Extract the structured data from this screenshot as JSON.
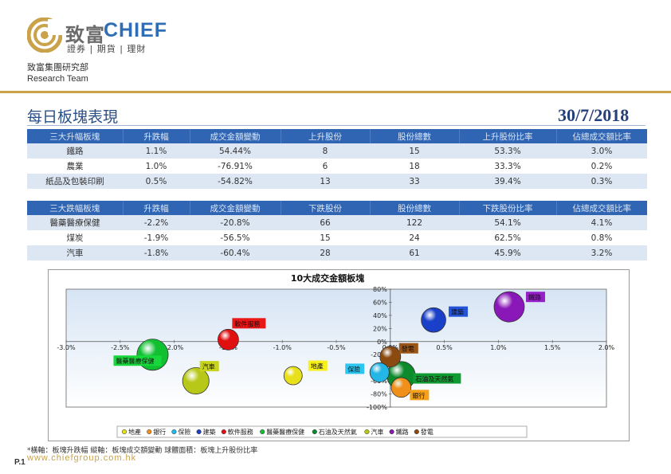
{
  "brand": {
    "name_cn": "致富",
    "name_en": "CHIEF",
    "tagline": "證券 | 期貨 | 理財",
    "colors": {
      "gold": "#c9a24a",
      "blue": "#2f6db5"
    }
  },
  "team": {
    "cn": "致富集團研究部",
    "en": "Research Team"
  },
  "page": {
    "title": "每日板塊表現",
    "date": "30/7/2018",
    "number": "P.1",
    "website": "www.chiefgroup.com.hk"
  },
  "top_table": {
    "headers": [
      "三大升幅板塊",
      "升跌幅",
      "成交金額變動",
      "上升股份",
      "股份總數",
      "上升股份比率",
      "佔總成交額比率"
    ],
    "rows": [
      [
        "鐵路",
        "1.1%",
        "54.44%",
        "8",
        "15",
        "53.3%",
        "3.0%"
      ],
      [
        "農業",
        "1.0%",
        "-76.91%",
        "6",
        "18",
        "33.3%",
        "0.2%"
      ],
      [
        "紙品及包裝印刷",
        "0.5%",
        "-54.82%",
        "13",
        "33",
        "39.4%",
        "0.3%"
      ]
    ]
  },
  "bottom_table": {
    "headers": [
      "三大跌幅板塊",
      "升跌幅",
      "成交金額變動",
      "下跌股份",
      "股份總數",
      "下跌股份比率",
      "佔總成交額比率"
    ],
    "rows": [
      [
        "醫藥醫療保健",
        "-2.2%",
        "-20.8%",
        "66",
        "122",
        "54.1%",
        "4.1%"
      ],
      [
        "煤炭",
        "-1.9%",
        "-56.5%",
        "15",
        "24",
        "62.5%",
        "0.8%"
      ],
      [
        "汽車",
        "-1.8%",
        "-60.4%",
        "28",
        "61",
        "45.9%",
        "3.2%"
      ]
    ]
  },
  "chart_data": {
    "type": "scatter",
    "title": "10大成交金額板塊",
    "x_ticks": [
      "-3.0%",
      "-2.5%",
      "-2.0%",
      "-1.5%",
      "-1.0%",
      "-0.5%",
      "0.0%",
      "0.5%",
      "1.0%",
      "1.5%",
      "2.0%"
    ],
    "y_ticks": [
      "80%",
      "60%",
      "40%",
      "20%",
      "0%",
      "-20%",
      "-40%",
      "-60%",
      "-80%",
      "-100%"
    ],
    "xlim": [
      -3.0,
      2.0
    ],
    "ylim": [
      -100,
      80
    ],
    "x_unit": "%",
    "y_unit": "%",
    "series": [
      {
        "name": "地產",
        "x": -0.9,
        "y": -52,
        "size": 25,
        "color": "#e8e01a",
        "label_bg": "#f7f01a"
      },
      {
        "name": "銀行",
        "x": 0.1,
        "y": -70,
        "size": 28,
        "color": "#f0901a",
        "label_bg": "#f5a11a"
      },
      {
        "name": "保險",
        "x": -0.1,
        "y": -47,
        "size": 27,
        "color": "#23b6e6",
        "label_bg": "#2cc6f0"
      },
      {
        "name": "建築",
        "x": 0.4,
        "y": 33,
        "size": 38,
        "color": "#1a3fc8",
        "label_bg": "#2453d8"
      },
      {
        "name": "軟件服務",
        "x": -1.5,
        "y": 3,
        "size": 30,
        "color": "#e01010",
        "label_bg": "#e81818"
      },
      {
        "name": "醫藥醫療保健",
        "x": -2.2,
        "y": -20,
        "size": 52,
        "color": "#10c030",
        "label_bg": "#16d83a"
      },
      {
        "name": "石油及天然氣",
        "x": 0.1,
        "y": -52,
        "size": 46,
        "color": "#0c8a2c",
        "label_bg": "#109a32"
      },
      {
        "name": "汽車",
        "x": -1.8,
        "y": -60,
        "size": 42,
        "color": "#b8c818",
        "label_bg": "#c8d41c"
      },
      {
        "name": "鐵路",
        "x": 1.1,
        "y": 53,
        "size": 50,
        "color": "#8a18b8",
        "label_bg": "#9620c8"
      },
      {
        "name": "發電",
        "x": 0.0,
        "y": -23,
        "size": 30,
        "color": "#8a4a10",
        "label_bg": "#9a5414"
      }
    ],
    "bubble_size_meaning": "板塊上升股份比率",
    "legend_position": "bottom",
    "footnote": "橫軸：板塊升跌幅      縱軸：板塊成交額變動      球體面積：板塊上升股份比率"
  }
}
